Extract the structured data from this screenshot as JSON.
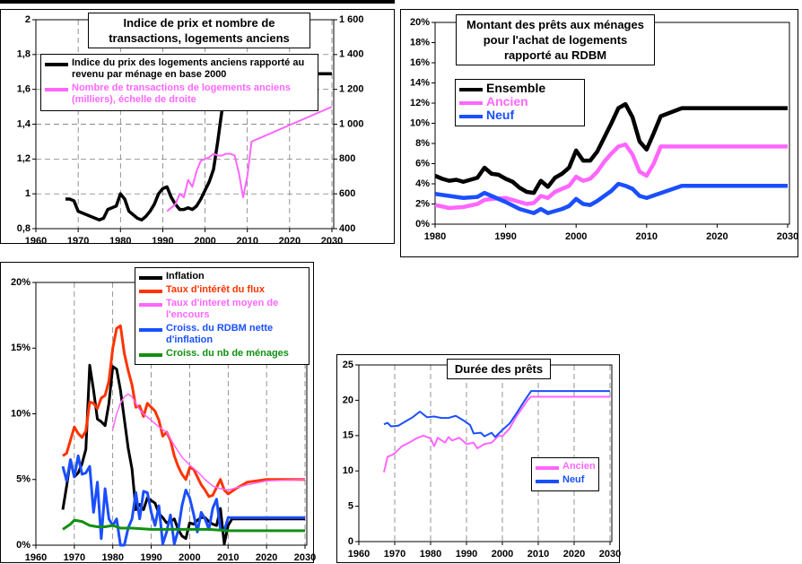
{
  "chart_data": [
    {
      "type": "line",
      "title": "Indice de prix et nombre de transactions, logements anciens",
      "xlim": [
        1960,
        2030
      ],
      "xticks": [
        1960,
        1970,
        1980,
        1990,
        2000,
        2010,
        2020,
        2030
      ],
      "ylim": [
        0.8,
        2
      ],
      "yticks": [
        {
          "value": 0.8,
          "label": "0,8"
        },
        1,
        {
          "value": 1.2,
          "label": "1,2"
        },
        {
          "value": 1.4,
          "label": "1,4"
        },
        {
          "value": 1.6,
          "label": "1,6"
        },
        {
          "value": 1.8,
          "label": "1,8"
        },
        2
      ],
      "y2lim": [
        400,
        1600
      ],
      "y2ticks": [
        400,
        600,
        800,
        {
          "value": 1000,
          "label": "1 000"
        },
        {
          "value": 1200,
          "label": "1 200"
        },
        {
          "value": 1400,
          "label": "1 400"
        },
        {
          "value": 1600,
          "label": "1 600"
        }
      ],
      "grid": "both",
      "series": [
        {
          "name": "Indice du prix des logements anciens rapporté au revenu par ménage en base 2000",
          "color": "#000000",
          "x": [
            1967,
            1968,
            1969,
            1970,
            1972,
            1974,
            1975,
            1976,
            1977,
            1978,
            1979,
            1980,
            1981,
            1982,
            1984,
            1985,
            1986,
            1987,
            1988,
            1989,
            1990,
            1991,
            1992,
            1993,
            1994,
            1995,
            1996,
            1997,
            1998,
            1999,
            2000,
            2001,
            2002,
            2003,
            2004,
            2005,
            2006,
            2007,
            2008,
            2009,
            2010,
            2030
          ],
          "values": [
            0.97,
            0.97,
            0.96,
            0.9,
            0.88,
            0.86,
            0.85,
            0.86,
            0.91,
            0.92,
            0.93,
            1.0,
            0.97,
            0.9,
            0.86,
            0.85,
            0.87,
            0.9,
            0.94,
            1.0,
            1.03,
            1.04,
            0.98,
            0.94,
            0.91,
            0.91,
            0.92,
            0.91,
            0.93,
            0.97,
            1.02,
            1.07,
            1.14,
            1.3,
            1.48,
            1.62,
            1.68,
            1.69,
            1.6,
            1.57,
            1.69,
            1.69
          ]
        },
        {
          "name": "Nombre de transactions de logements anciens (milliers), échelle de droite",
          "color": "#ff66ff",
          "axis": "y2",
          "x": [
            1991,
            1992,
            1993,
            1994,
            1995,
            1996,
            1997,
            1998,
            1999,
            2000,
            2001,
            2002,
            2003,
            2004,
            2005,
            2006,
            2007,
            2008,
            2009,
            2010,
            2011,
            2030
          ],
          "values": [
            500,
            520,
            540,
            600,
            580,
            680,
            640,
            730,
            790,
            800,
            810,
            830,
            820,
            820,
            830,
            830,
            820,
            720,
            580,
            700,
            900,
            1100
          ]
        }
      ]
    },
    {
      "type": "line",
      "title": "Montant des prêts aux ménages pour l'achat de logements rapporté au RDBM",
      "xlim": [
        1980,
        2030
      ],
      "xticks": [
        1980,
        1990,
        2000,
        2010,
        2020,
        2030
      ],
      "ylim": [
        0,
        20
      ],
      "yticks": [
        {
          "value": 0,
          "label": "0%"
        },
        {
          "value": 2,
          "label": "2%"
        },
        {
          "value": 4,
          "label": "4%"
        },
        {
          "value": 6,
          "label": "6%"
        },
        {
          "value": 8,
          "label": "8%"
        },
        {
          "value": 10,
          "label": "10%"
        },
        {
          "value": 12,
          "label": "12%"
        },
        {
          "value": 14,
          "label": "14%"
        },
        {
          "value": 16,
          "label": "16%"
        },
        {
          "value": 18,
          "label": "18%"
        },
        {
          "value": 20,
          "label": "20%"
        }
      ],
      "grid": false,
      "series": [
        {
          "name": "Ensemble",
          "color": "#000000",
          "x": [
            1980,
            1981,
            1982,
            1983,
            1984,
            1985,
            1986,
            1987,
            1988,
            1989,
            1990,
            1991,
            1992,
            1993,
            1994,
            1995,
            1996,
            1997,
            1998,
            1999,
            2000,
            2001,
            2002,
            2003,
            2004,
            2005,
            2006,
            2007,
            2008,
            2009,
            2010,
            2011,
            2012,
            2015,
            2030
          ],
          "values": [
            4.8,
            4.5,
            4.3,
            4.4,
            4.2,
            4.4,
            4.6,
            5.6,
            5.0,
            4.9,
            4.5,
            4.2,
            3.6,
            3.2,
            3.1,
            4.3,
            3.7,
            4.6,
            5.0,
            5.6,
            7.3,
            6.3,
            6.3,
            7.2,
            8.6,
            10.0,
            11.5,
            11.9,
            10.6,
            8.2,
            7.4,
            9.0,
            10.7,
            11.5,
            11.5
          ]
        },
        {
          "name": "Ancien",
          "color": "#ff66ff",
          "x": [
            1980,
            1982,
            1984,
            1986,
            1987,
            1988,
            1990,
            1991,
            1993,
            1994,
            1995,
            1996,
            1997,
            1998,
            1999,
            2000,
            2001,
            2002,
            2003,
            2004,
            2005,
            2006,
            2007,
            2008,
            2009,
            2010,
            2011,
            2012,
            2030
          ],
          "values": [
            1.9,
            1.6,
            1.7,
            2.0,
            2.4,
            2.5,
            2.6,
            2.4,
            2.0,
            2.1,
            2.8,
            2.6,
            3.2,
            3.5,
            3.8,
            4.7,
            4.3,
            4.5,
            5.2,
            6.2,
            7.0,
            7.7,
            7.9,
            6.9,
            5.2,
            4.8,
            6.0,
            7.7,
            7.7
          ]
        },
        {
          "name": "Neuf",
          "color": "#1a4fff",
          "x": [
            1980,
            1982,
            1984,
            1986,
            1987,
            1988,
            1990,
            1992,
            1994,
            1995,
            1996,
            1998,
            1999,
            2000,
            2001,
            2002,
            2003,
            2004,
            2005,
            2006,
            2007,
            2008,
            2009,
            2010,
            2015,
            2030
          ],
          "values": [
            3.0,
            2.8,
            2.6,
            2.7,
            3.1,
            2.8,
            2.2,
            1.5,
            1.1,
            1.5,
            1.1,
            1.5,
            1.8,
            2.5,
            2.0,
            1.9,
            2.3,
            2.8,
            3.3,
            4.0,
            3.8,
            3.5,
            2.8,
            2.6,
            3.8,
            3.8
          ]
        }
      ]
    },
    {
      "type": "line",
      "xlim": [
        1960,
        2030
      ],
      "xticks": [
        1960,
        1970,
        1980,
        1990,
        2000,
        2010,
        2020,
        2030
      ],
      "ylim": [
        0,
        20
      ],
      "yticks": [
        {
          "value": 0,
          "label": "0%"
        },
        {
          "value": 5,
          "label": "5%"
        },
        {
          "value": 10,
          "label": "10%"
        },
        {
          "value": 15,
          "label": "15%"
        },
        {
          "value": 20,
          "label": "20%"
        }
      ],
      "grid": "x",
      "series": [
        {
          "name": "Inflation",
          "color": "#000000",
          "x": [
            1967,
            1968,
            1969,
            1970,
            1971,
            1972,
            1973,
            1974,
            1975,
            1976,
            1977,
            1978,
            1979,
            1980,
            1981,
            1982,
            1983,
            1984,
            1985,
            1986,
            1987,
            1988,
            1989,
            1990,
            1991,
            1992,
            1993,
            1994,
            1995,
            1996,
            1997,
            1998,
            1999,
            2000,
            2001,
            2002,
            2003,
            2004,
            2005,
            2006,
            2007,
            2008,
            2009,
            2010,
            2011,
            2030
          ],
          "values": [
            2.7,
            4.5,
            6.5,
            5.2,
            5.5,
            6.2,
            7.3,
            13.7,
            11.8,
            9.6,
            9.4,
            9.1,
            10.8,
            13.6,
            13.4,
            11.8,
            9.6,
            7.4,
            5.8,
            2.7,
            3.1,
            2.7,
            3.6,
            3.4,
            3.2,
            2.4,
            2.1,
            1.7,
            1.8,
            2.0,
            1.2,
            0.7,
            0.5,
            1.7,
            1.6,
            1.9,
            2.1,
            2.1,
            1.8,
            1.6,
            1.5,
            2.8,
            0.1,
            1.5,
            2.0,
            2.0
          ]
        },
        {
          "name": "Taux d'intérêt du flux",
          "color": "#ff3300",
          "x": [
            1967,
            1968,
            1969,
            1970,
            1971,
            1972,
            1973,
            1974,
            1975,
            1976,
            1977,
            1978,
            1979,
            1980,
            1981,
            1982,
            1983,
            1984,
            1985,
            1986,
            1987,
            1988,
            1989,
            1990,
            1991,
            1992,
            1993,
            1994,
            1995,
            1996,
            1997,
            1998,
            1999,
            2000,
            2001,
            2002,
            2003,
            2004,
            2005,
            2006,
            2007,
            2008,
            2009,
            2010,
            2012,
            2015,
            2020,
            2030
          ],
          "values": [
            6.8,
            7.0,
            8.0,
            9.0,
            8.5,
            8.2,
            8.7,
            10.9,
            10.8,
            10.4,
            11.2,
            11.4,
            12.5,
            15.0,
            16.5,
            16.7,
            14.6,
            13.3,
            12.2,
            10.5,
            10.6,
            9.8,
            10.8,
            10.5,
            10.2,
            9.5,
            8.3,
            8.6,
            8.0,
            6.8,
            6.0,
            5.4,
            5.0,
            5.9,
            5.8,
            5.2,
            4.6,
            4.2,
            3.7,
            3.8,
            4.4,
            5.0,
            4.2,
            3.9,
            4.3,
            4.8,
            5.0,
            5.0
          ]
        },
        {
          "name": "Taux d'interet moyen de l'encours",
          "color": "#ff66ff",
          "x": [
            1980,
            1981,
            1982,
            1983,
            1984,
            1985,
            1986,
            1987,
            1988,
            1990,
            1992,
            1994,
            1996,
            1998,
            2000,
            2002,
            2004,
            2006,
            2008,
            2010,
            2015,
            2020,
            2030
          ],
          "values": [
            8.8,
            10.0,
            10.8,
            11.3,
            11.5,
            11.3,
            10.8,
            10.3,
            10.0,
            9.5,
            9.0,
            8.6,
            7.6,
            6.7,
            6.1,
            5.6,
            5.0,
            4.5,
            4.3,
            4.2,
            4.6,
            4.9,
            5.0
          ]
        },
        {
          "name": "Croiss. du RDBM nette d'inflation",
          "color": "#1a4fff",
          "x": [
            1967,
            1968,
            1969,
            1970,
            1971,
            1972,
            1973,
            1974,
            1975,
            1976,
            1977,
            1978,
            1979,
            1980,
            1981,
            1982,
            1983,
            1984,
            1985,
            1986,
            1987,
            1988,
            1989,
            1990,
            1991,
            1992,
            1993,
            1994,
            1995,
            1996,
            1997,
            1998,
            1999,
            2000,
            2001,
            2002,
            2003,
            2004,
            2005,
            2006,
            2007,
            2008,
            2009,
            2010,
            2030
          ],
          "values": [
            6.0,
            4.9,
            6.5,
            5.2,
            6.8,
            5.4,
            5.5,
            6.0,
            2.5,
            4.8,
            0.5,
            4.3,
            2.0,
            1.5,
            2.0,
            0.0,
            0.0,
            1.3,
            2.0,
            4.0,
            2.0,
            4.1,
            4.0,
            2.5,
            1.5,
            3.0,
            0.1,
            1.0,
            2.3,
            0.1,
            1.1,
            3.0,
            4.2,
            3.6,
            2.4,
            1.0,
            2.5,
            2.0,
            1.2,
            2.8,
            3.5,
            1.2,
            1.1,
            2.1,
            2.1
          ]
        },
        {
          "name": "Croiss. du nb de ménages",
          "color": "#109010",
          "x": [
            1967,
            1969,
            1970,
            1972,
            1974,
            1976,
            1978,
            1980,
            1982,
            1985,
            1990,
            1995,
            2000,
            2005,
            2010,
            2030
          ],
          "values": [
            1.2,
            1.6,
            1.9,
            1.8,
            1.5,
            1.4,
            1.4,
            1.5,
            1.3,
            1.3,
            1.2,
            1.2,
            1.2,
            1.2,
            1.1,
            1.1
          ]
        }
      ]
    },
    {
      "type": "line",
      "title": "Durée des prêts",
      "xlim": [
        1960,
        2030
      ],
      "xticks": [
        1960,
        1970,
        1980,
        1990,
        2000,
        2010,
        2020,
        2030
      ],
      "ylim": [
        0,
        25
      ],
      "yticks": [
        0,
        5,
        10,
        15,
        20,
        25
      ],
      "grid": "x",
      "series": [
        {
          "name": "Ancien",
          "color": "#ff66ff",
          "x": [
            1967,
            1968,
            1969,
            1970,
            1971,
            1972,
            1974,
            1976,
            1978,
            1980,
            1981,
            1982,
            1984,
            1985,
            1986,
            1988,
            1990,
            1992,
            1993,
            1995,
            1997,
            1999,
            2000,
            2002,
            2004,
            2005,
            2007,
            2008,
            2030
          ],
          "values": [
            9.8,
            12.0,
            12.2,
            12.5,
            13.0,
            13.5,
            14.0,
            14.6,
            15.0,
            14.6,
            13.5,
            14.7,
            14.0,
            14.8,
            14.3,
            14.7,
            13.8,
            14.0,
            13.2,
            13.8,
            14.0,
            15.0,
            14.9,
            16.0,
            17.8,
            18.5,
            20.0,
            20.5,
            20.5
          ]
        },
        {
          "name": "Neuf",
          "color": "#1a4fff",
          "x": [
            1967,
            1968,
            1969,
            1971,
            1973,
            1975,
            1977,
            1979,
            1981,
            1983,
            1985,
            1987,
            1989,
            1991,
            1992,
            1994,
            1995,
            1997,
            1998,
            2000,
            2002,
            2004,
            2006,
            2008,
            2030
          ],
          "values": [
            16.6,
            16.8,
            16.3,
            16.4,
            17.0,
            17.6,
            18.4,
            17.6,
            17.7,
            17.5,
            17.5,
            17.8,
            17.2,
            16.5,
            15.3,
            15.4,
            14.9,
            15.4,
            14.8,
            15.8,
            16.7,
            18.2,
            19.8,
            21.3,
            21.3
          ]
        }
      ]
    }
  ]
}
